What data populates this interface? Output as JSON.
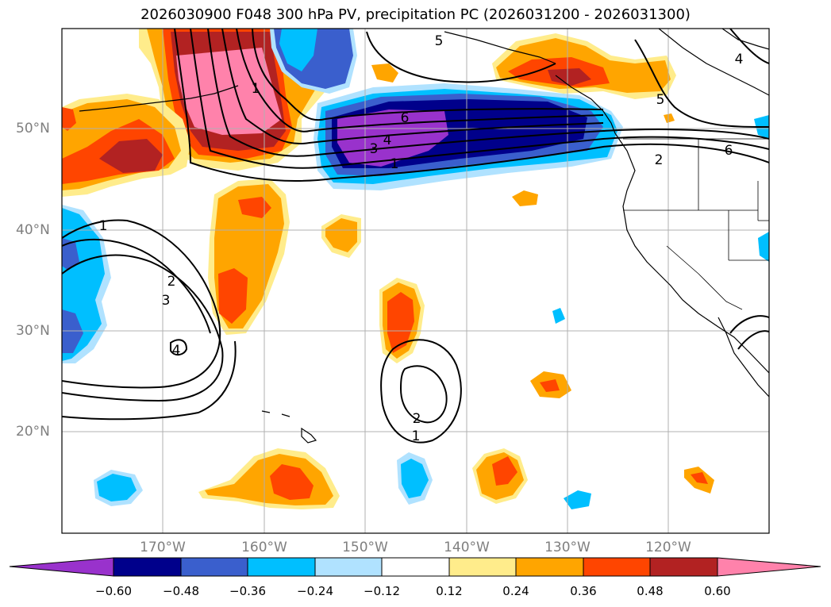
{
  "title": "2026030900 F048 300 hPa PV, precipitation PC (2026031200 - 2026031300)",
  "latitude_labels": [
    "50°N",
    "40°N",
    "30°N",
    "20°N"
  ],
  "longitude_labels": [
    "170°W",
    "160°W",
    "150°W",
    "140°W",
    "130°W",
    "120°W"
  ],
  "colorbar": {
    "ticks": [
      "−0.60",
      "−0.48",
      "−0.36",
      "−0.24",
      "−0.12",
      "0.12",
      "0.24",
      "0.36",
      "0.48",
      "0.60"
    ],
    "colors": [
      "#9932cc",
      "#00008b",
      "#3a5fcd",
      "#00bfff",
      "#b0e2ff",
      "#ffffff",
      "#ffec8b",
      "#ffa500",
      "#ff4500",
      "#b22222",
      "#ff82ab"
    ]
  },
  "contour_labels": [
    "1",
    "2",
    "3",
    "4",
    "5",
    "6"
  ],
  "colors": {
    "grid": "#b0b0b0",
    "coast": "#000000",
    "label_gray": "#7f7f7f"
  }
}
